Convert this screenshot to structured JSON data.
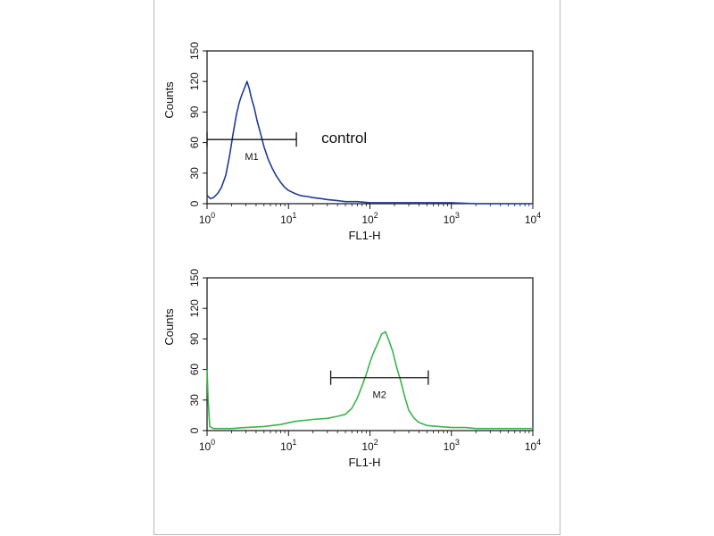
{
  "chart_data": [
    {
      "type": "line",
      "panel": "top",
      "xlabel": "FL1-H",
      "ylabel": "Counts",
      "xscale": "log",
      "xlim": [
        1,
        10000
      ],
      "ylim": [
        0,
        150
      ],
      "yticks": [
        0,
        30,
        60,
        90,
        120,
        150
      ],
      "xticks": [
        {
          "base": "10",
          "exp": "0"
        },
        {
          "base": "10",
          "exp": "1"
        },
        {
          "base": "10",
          "exp": "2"
        },
        {
          "base": "10",
          "exp": "3"
        },
        {
          "base": "10",
          "exp": "4"
        }
      ],
      "color": "#1f3c96",
      "annotation": "control",
      "gate": {
        "label": "M1",
        "from": 1,
        "to": 12.5,
        "y": 63
      },
      "series": [
        {
          "x": [
            1,
            1.1,
            1.2,
            1.35,
            1.5,
            1.7,
            1.9,
            2.1,
            2.3,
            2.5,
            2.7,
            2.9,
            3.1,
            3.3,
            3.5,
            3.8,
            4.1,
            4.5,
            5,
            5.6,
            6.3,
            7,
            8,
            9,
            10,
            12,
            14,
            17,
            20,
            25,
            30,
            40,
            50,
            70,
            100,
            150,
            200,
            300,
            500,
            1000,
            2000,
            5000,
            10000
          ],
          "values": [
            8,
            5,
            6,
            10,
            16,
            28,
            48,
            70,
            88,
            100,
            108,
            114,
            120,
            113,
            104,
            94,
            82,
            70,
            56,
            44,
            35,
            28,
            21,
            16,
            13,
            10,
            8,
            7,
            6,
            5,
            4,
            3,
            2,
            2,
            1,
            1,
            1,
            1,
            1,
            1,
            0,
            0,
            0
          ]
        }
      ]
    },
    {
      "type": "line",
      "panel": "bottom",
      "xlabel": "FL1-H",
      "ylabel": "Counts",
      "xscale": "log",
      "xlim": [
        1,
        10000
      ],
      "ylim": [
        0,
        150
      ],
      "yticks": [
        0,
        30,
        60,
        90,
        120,
        150
      ],
      "xticks": [
        {
          "base": "10",
          "exp": "0"
        },
        {
          "base": "10",
          "exp": "1"
        },
        {
          "base": "10",
          "exp": "2"
        },
        {
          "base": "10",
          "exp": "3"
        },
        {
          "base": "10",
          "exp": "4"
        }
      ],
      "color": "#39b54a",
      "gate": {
        "label": "M2",
        "from": 33,
        "to": 520,
        "y": 52
      },
      "series": [
        {
          "x": [
            1,
            1.03,
            1.08,
            1.2,
            1.5,
            2,
            3,
            5,
            8,
            12,
            20,
            30,
            40,
            50,
            60,
            70,
            80,
            90,
            100,
            110,
            125,
            140,
            155,
            170,
            190,
            210,
            240,
            270,
            300,
            350,
            400,
            500,
            700,
            1000,
            1500,
            2000,
            3000,
            5000,
            10000
          ],
          "values": [
            60,
            30,
            4,
            2,
            2,
            2,
            3,
            4,
            6,
            9,
            11,
            12,
            14,
            16,
            22,
            32,
            44,
            55,
            67,
            76,
            86,
            95,
            97,
            89,
            78,
            64,
            48,
            32,
            20,
            12,
            8,
            5,
            4,
            3,
            3,
            2,
            2,
            2,
            2
          ]
        }
      ]
    }
  ]
}
